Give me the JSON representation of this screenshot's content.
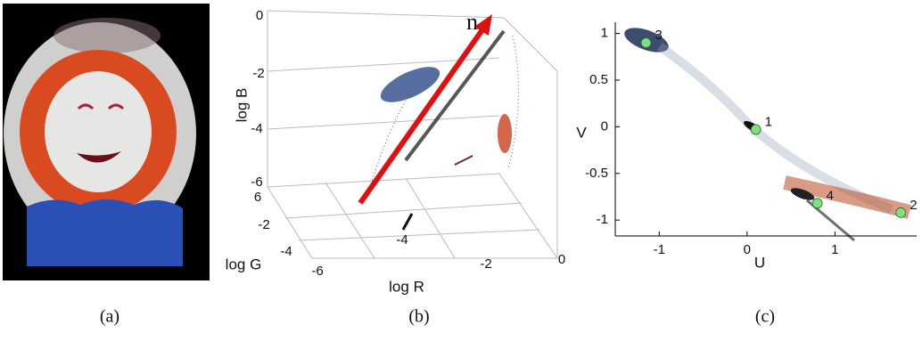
{
  "panels": [
    {
      "caption": "(a)"
    },
    {
      "caption": "(b)",
      "arrow_label": "n",
      "z_label": "log B",
      "z_ticks": [
        "0",
        "-2",
        "-4",
        "-6"
      ],
      "y_label": "log G",
      "y_ticks": [
        "6",
        "-2",
        "-4"
      ],
      "x_label": "log R",
      "x_ticks": [
        "-6",
        "-4",
        "-2",
        "0"
      ]
    },
    {
      "caption": "(c)"
    }
  ],
  "chart_data": {
    "type": "scatter",
    "x_label": "U",
    "y_label": "V",
    "x": [
      -1.15,
      0.1,
      0.8,
      1.75
    ],
    "values": [
      0.9,
      -0.03,
      -0.82,
      -0.92
    ],
    "labels": [
      "3",
      "1",
      "4",
      "2"
    ],
    "color": "#7ee07e",
    "xlim": [
      -1.5,
      1.93
    ],
    "ylim": [
      -1.17,
      1.12
    ],
    "xticks": [
      -1,
      0,
      1
    ],
    "yticks": [
      1,
      0.5,
      0,
      -0.5,
      -1
    ]
  }
}
